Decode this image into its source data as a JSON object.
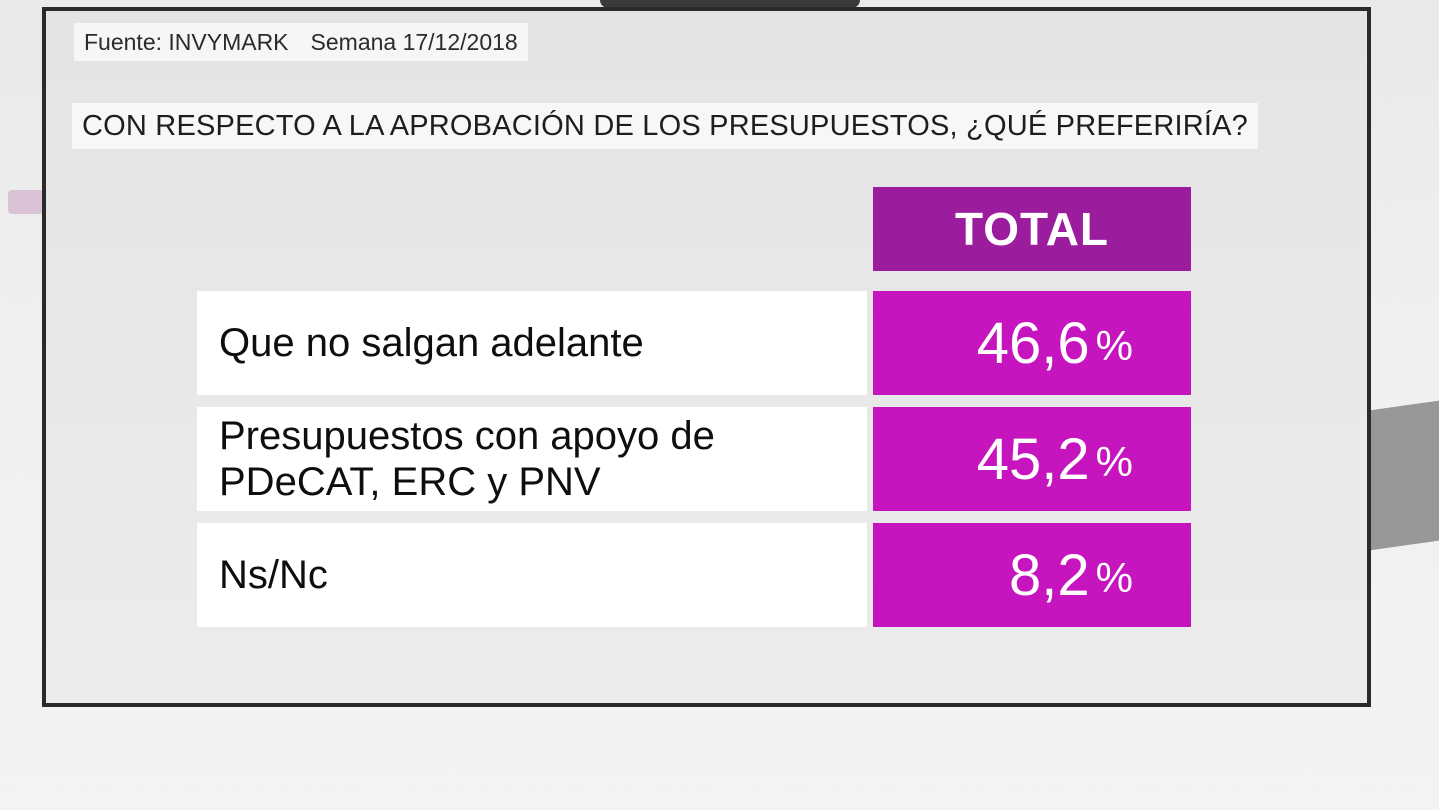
{
  "source": {
    "label": "Fuente: INVYMARK",
    "week": "Semana 17/12/2018"
  },
  "question": "CON RESPECTO A LA APROBACIÓN DE LOS PRESUPUESTOS, ¿QUÉ PREFERIRÍA?",
  "colors": {
    "header_bg": "#9b1c9c",
    "value_bg": "#c614bf",
    "label_bg": "#ffffff"
  },
  "chart_data": {
    "type": "table",
    "title": "CON RESPECTO A LA APROBACIÓN DE LOS PRESUPUESTOS, ¿QUÉ PREFERIRÍA?",
    "columns": [
      "TOTAL"
    ],
    "rows": [
      {
        "label": "Que no salgan adelante",
        "value": 46.6,
        "display": "46,6",
        "unit": "%"
      },
      {
        "label": "Presupuestos con apoyo de PDeCAT, ERC y PNV",
        "value": 45.2,
        "display": "45,2",
        "unit": "%"
      },
      {
        "label": "Ns/Nc",
        "value": 8.2,
        "display": "8,2",
        "unit": "%"
      }
    ]
  }
}
